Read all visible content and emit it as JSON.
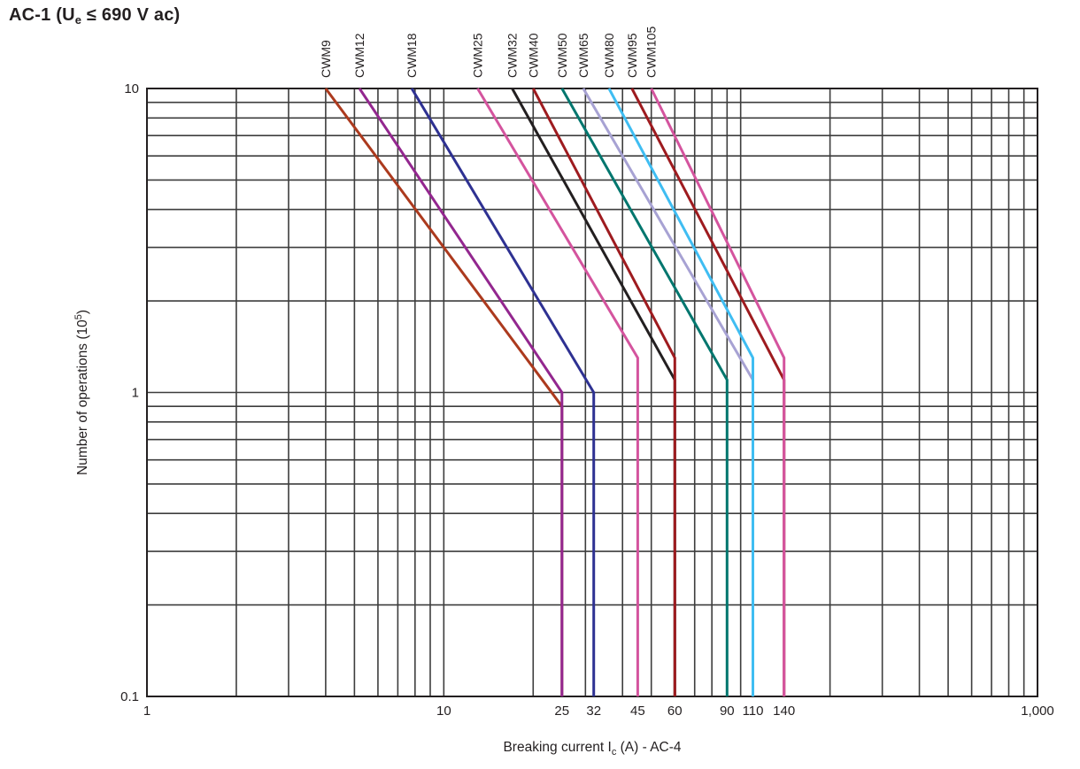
{
  "title": {
    "prefix": "AC-1 (U",
    "subscript": "e",
    "suffix": " ≤ 690 V ac)"
  },
  "chart_data": {
    "type": "line",
    "title": "AC-1 (Ue ≤ 690 V ac)",
    "xlabel": "Breaking current Ic (A) - AC-4",
    "ylabel": "Number of operations (10^5)",
    "x_axis": {
      "scale": "log",
      "min": 1,
      "max": 1000,
      "label_parts": [
        {
          "text": "Breaking current I",
          "style": "normal"
        },
        {
          "text": "c",
          "style": "sub"
        },
        {
          "text": " (A) - AC-4",
          "style": "normal"
        }
      ],
      "major_ticks": [
        {
          "value": 1,
          "label": "1"
        },
        {
          "value": 10,
          "label": "10"
        },
        {
          "value": 1000,
          "label": "1,000"
        }
      ],
      "special_ticks": [
        {
          "value": 25,
          "label": "25"
        },
        {
          "value": 32,
          "label": "32"
        },
        {
          "value": 45,
          "label": "45"
        },
        {
          "value": 60,
          "label": "60"
        },
        {
          "value": 90,
          "label": "90"
        },
        {
          "value": 110,
          "label": "110"
        },
        {
          "value": 140,
          "label": "140"
        }
      ]
    },
    "y_axis": {
      "scale": "log",
      "min": 0.1,
      "max": 10,
      "label_parts": [
        {
          "text": "Number of operations (10",
          "style": "normal"
        },
        {
          "text": "5",
          "style": "sup"
        },
        {
          "text": ")",
          "style": "normal"
        }
      ],
      "major_ticks": [
        {
          "value": 10,
          "label": "10"
        },
        {
          "value": 1,
          "label": "1"
        },
        {
          "value": 0.1,
          "label": "0.1"
        }
      ]
    },
    "grid": {
      "minor_gridlines": true,
      "line_color": "#3d3d3d",
      "border_color": "#231f20",
      "text_color": "#231f20"
    },
    "legend_position": "rotated-labels-above-curve-start",
    "series": [
      {
        "name": "CWM9",
        "color": "#ac3a1e",
        "points": [
          [
            4,
            10
          ],
          [
            25,
            0.9
          ],
          [
            25,
            0.1
          ]
        ]
      },
      {
        "name": "CWM12",
        "color": "#93278f",
        "points": [
          [
            5.2,
            10
          ],
          [
            25,
            1.0
          ],
          [
            25,
            0.1
          ]
        ]
      },
      {
        "name": "CWM18",
        "color": "#2e3192",
        "points": [
          [
            7.8,
            10
          ],
          [
            32,
            1.0
          ],
          [
            32,
            0.1
          ]
        ]
      },
      {
        "name": "CWM25",
        "color": "#d4549e",
        "points": [
          [
            13,
            10
          ],
          [
            45,
            1.3
          ],
          [
            45,
            0.1
          ]
        ]
      },
      {
        "name": "CWM32",
        "color": "#231f20",
        "points": [
          [
            17,
            10
          ],
          [
            60,
            1.1
          ],
          [
            60,
            0.1
          ]
        ]
      },
      {
        "name": "CWM40",
        "color": "#9e1b1f",
        "points": [
          [
            20,
            10
          ],
          [
            60,
            1.3
          ],
          [
            60,
            0.1
          ]
        ]
      },
      {
        "name": "CWM50",
        "color": "#00766e",
        "points": [
          [
            25,
            10
          ],
          [
            90,
            1.1
          ],
          [
            90,
            0.1
          ]
        ]
      },
      {
        "name": "CWM65",
        "color": "#a7a2d3",
        "points": [
          [
            29.5,
            10
          ],
          [
            110,
            1.1
          ],
          [
            110,
            0.1
          ]
        ]
      },
      {
        "name": "CWM80",
        "color": "#3fbdf2",
        "points": [
          [
            36,
            10
          ],
          [
            110,
            1.3
          ],
          [
            110,
            0.1
          ]
        ]
      },
      {
        "name": "CWM95",
        "color": "#9e1b1f",
        "points": [
          [
            43,
            10
          ],
          [
            140,
            1.1
          ],
          [
            140,
            0.1
          ]
        ]
      },
      {
        "name": "CWM105",
        "color": "#d4549e",
        "points": [
          [
            50,
            10
          ],
          [
            140,
            1.3
          ],
          [
            140,
            0.1
          ]
        ]
      }
    ]
  }
}
